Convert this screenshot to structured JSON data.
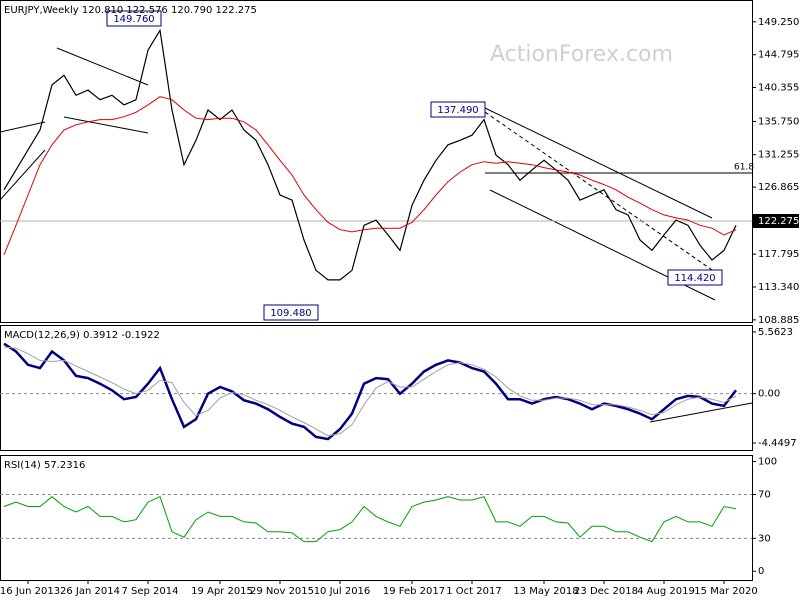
{
  "watermark": "ActionForex.com",
  "chart_data": [
    {
      "type": "line",
      "title": "EURJPY,Weekly  120.810 122.576 120.790 122.275",
      "series": [
        {
          "color": "#000000",
          "values": [
            126.5,
            129.2,
            131.9,
            134.6,
            140.7,
            142.0,
            139.3,
            140.0,
            138.7,
            139.3,
            138.0,
            138.7,
            145.4,
            148.1,
            137.3,
            129.9,
            133.2,
            137.3,
            136.0,
            137.3,
            134.6,
            133.2,
            129.9,
            125.8,
            125.1,
            119.7,
            115.6,
            114.3,
            114.3,
            115.6,
            121.7,
            122.4,
            120.4,
            118.3,
            124.4,
            127.8,
            130.5,
            132.6,
            133.2,
            133.9,
            136.0,
            131.2,
            129.9,
            127.8,
            129.2,
            130.5,
            129.2,
            127.8,
            125.1,
            125.8,
            126.5,
            123.8,
            123.1,
            119.7,
            118.3,
            120.4,
            122.4,
            121.7,
            119.0,
            117.0,
            118.3,
            121.7
          ]
        },
        {
          "color": "#e00000",
          "values": [
            117.7,
            121.7,
            125.8,
            129.9,
            132.6,
            134.6,
            135.3,
            135.7,
            136.0,
            136.0,
            136.4,
            137.0,
            138.0,
            139.1,
            138.7,
            137.3,
            136.2,
            136.0,
            136.2,
            136.2,
            135.7,
            134.6,
            132.6,
            130.5,
            128.5,
            125.8,
            123.8,
            122.1,
            121.1,
            120.8,
            121.1,
            121.3,
            121.3,
            121.3,
            122.1,
            123.8,
            125.8,
            127.6,
            128.9,
            129.9,
            130.3,
            130.1,
            130.3,
            130.1,
            129.9,
            129.5,
            129.2,
            128.9,
            128.5,
            127.8,
            127.2,
            126.5,
            125.5,
            124.7,
            123.8,
            123.1,
            122.7,
            122.4,
            121.7,
            121.3,
            120.4,
            121.1
          ]
        }
      ],
      "ylim": [
        108.6,
        152.2
      ],
      "yticks": [
        {
          "value": 149.25,
          "label": "149.250"
        },
        {
          "value": 144.795,
          "label": "144.795"
        },
        {
          "value": 140.355,
          "label": "140.355"
        },
        {
          "value": 135.75,
          "label": "135.750"
        },
        {
          "value": 131.255,
          "label": "131.255"
        },
        {
          "value": 126.865,
          "label": "126.865"
        },
        {
          "value": 117.795,
          "label": "117.795"
        },
        {
          "value": 113.34,
          "label": "113.340"
        },
        {
          "value": 108.885,
          "label": "108.885"
        }
      ],
      "last_price": {
        "value": 122.275,
        "label": "122.275"
      },
      "annotations": [
        "149.760",
        "109.480",
        "137.490",
        "114.420",
        "61.8"
      ],
      "grid": false
    },
    {
      "type": "line",
      "title": "MACD(12,26,9) 0.3912 -0.1922",
      "series": [
        {
          "color": "#000080",
          "values": [
            4.5,
            3.8,
            2.6,
            2.3,
            3.8,
            3.0,
            1.6,
            1.4,
            0.9,
            0.3,
            -0.5,
            -0.3,
            0.9,
            2.3,
            -0.5,
            -3.0,
            -2.3,
            0,
            0.6,
            0.2,
            -0.6,
            -0.9,
            -1.4,
            -2.1,
            -2.7,
            -3.0,
            -3.9,
            -4.1,
            -3.2,
            -1.8,
            0.9,
            1.4,
            1.3,
            0,
            0.9,
            2.0,
            2.6,
            3.0,
            2.8,
            2.3,
            2.0,
            0.9,
            -0.5,
            -0.5,
            -0.9,
            -0.5,
            -0.3,
            -0.5,
            -0.9,
            -1.4,
            -0.9,
            -1.1,
            -1.4,
            -1.8,
            -2.3,
            -1.4,
            -0.5,
            -0.2,
            -0.3,
            -0.9,
            -1.1,
            0.3
          ]
        },
        {
          "color": "#a0a0a0",
          "values": [
            4.2,
            4.1,
            3.6,
            3.0,
            2.9,
            3.0,
            2.5,
            2.0,
            1.5,
            1.0,
            0.4,
            0.0,
            0.3,
            1.2,
            1.0,
            -0.8,
            -2.0,
            -1.5,
            -0.4,
            0.1,
            -0.1,
            -0.6,
            -1.0,
            -1.5,
            -2.1,
            -2.6,
            -3.2,
            -3.8,
            -3.6,
            -2.8,
            -1.0,
            0.5,
            1.1,
            0.6,
            0.6,
            1.3,
            2.0,
            2.6,
            2.8,
            2.6,
            2.2,
            1.5,
            0.5,
            -0.2,
            -0.6,
            -0.6,
            -0.4,
            -0.4,
            -0.6,
            -1.0,
            -1.0,
            -1.0,
            -1.2,
            -1.5,
            -1.9,
            -1.7,
            -1.0,
            -0.5,
            -0.3,
            -0.5,
            -0.8,
            -0.2
          ]
        }
      ],
      "ylim": [
        -5.08,
        6.19
      ],
      "yticks": [
        5.5623,
        {
          "value": 0,
          "label": "0.00"
        },
        -4.4497
      ],
      "grid": true
    },
    {
      "type": "line",
      "title": "RSI(14) 57.2316",
      "categories": [
        null,
        null,
        "16 Jun 2013",
        null,
        null,
        null,
        null,
        "26 Jan 2014",
        null,
        null,
        null,
        null,
        "7 Sep 2014",
        null,
        null,
        null,
        null,
        null,
        "19 Apr 2015",
        null,
        null,
        null,
        null,
        "29 Nov 2015",
        null,
        null,
        null,
        null,
        "10 Jul 2016",
        null,
        null,
        null,
        null,
        null,
        "19 Feb 2017",
        null,
        null,
        null,
        null,
        "1 Oct 2017",
        null,
        null,
        null,
        null,
        null,
        "13 May 2018",
        null,
        null,
        null,
        null,
        "23 Dec 2018",
        null,
        null,
        null,
        null,
        "4 Aug 2019",
        null,
        null,
        null,
        null,
        "15 Mar 2020",
        null
      ],
      "series": [
        {
          "color": "#00a000",
          "values": [
            59,
            63,
            59,
            59,
            68,
            59,
            54,
            59,
            50,
            50,
            45,
            47,
            63,
            68,
            36,
            31,
            47,
            54,
            50,
            50,
            45,
            44,
            36,
            36,
            35,
            27,
            27,
            36,
            38,
            45,
            59,
            50,
            45,
            41,
            59,
            63,
            65,
            68,
            65,
            65,
            68,
            45,
            45,
            41,
            50,
            50,
            45,
            44,
            31,
            41,
            41,
            36,
            36,
            31,
            27,
            45,
            50,
            45,
            45,
            41,
            59,
            57
          ]
        }
      ],
      "ylim": [
        -8,
        106
      ],
      "yticks": [
        100,
        70,
        30,
        0
      ],
      "grid": true
    }
  ]
}
